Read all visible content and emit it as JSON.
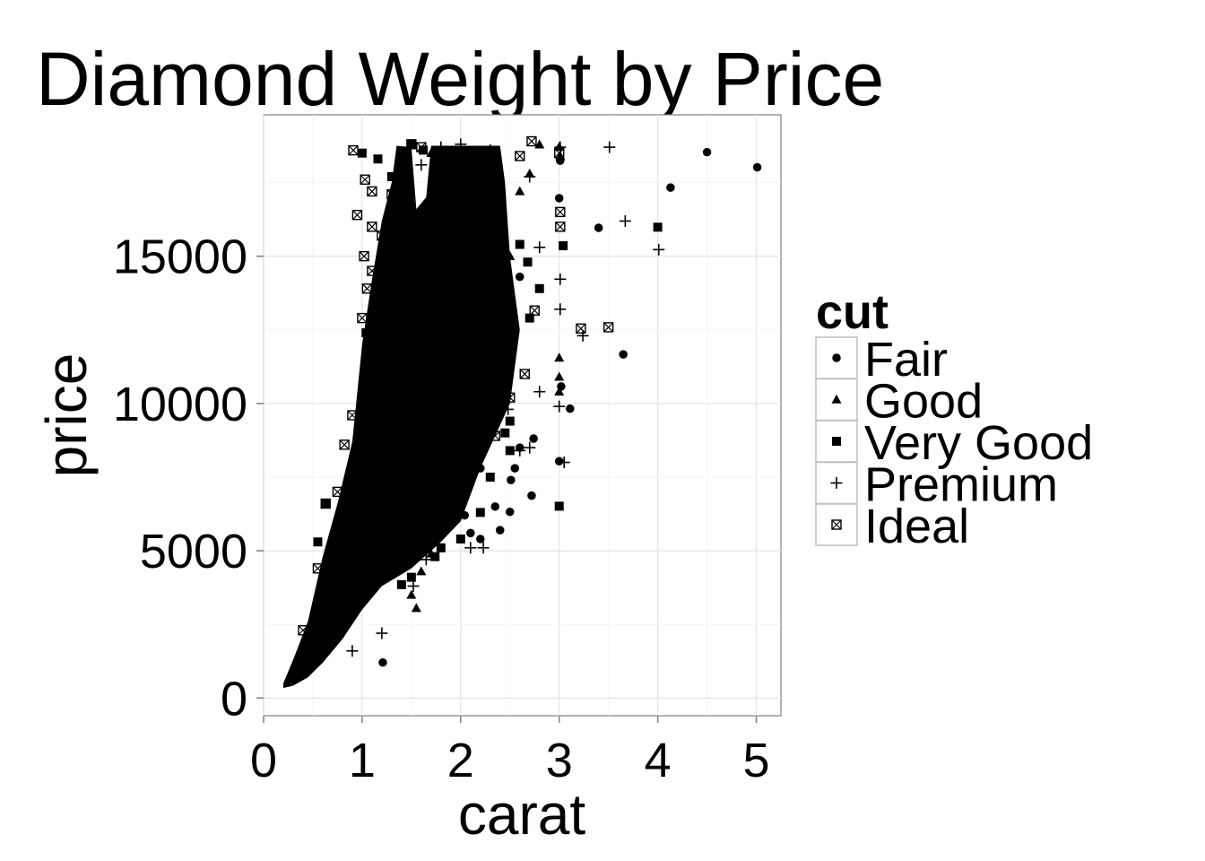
{
  "chart_data": {
    "type": "scatter",
    "title": "Diamond Weight by Price",
    "xlabel": "carat",
    "ylabel": "price",
    "xlim": [
      0,
      5.25
    ],
    "ylim": [
      -600,
      19800
    ],
    "xticks": [
      0,
      1,
      2,
      3,
      4,
      5
    ],
    "xtick_labels": [
      "0",
      "1",
      "2",
      "3",
      "4",
      "5"
    ],
    "yticks": [
      0,
      5000,
      10000,
      15000
    ],
    "ytick_labels": [
      "0",
      "5000",
      "10000",
      "15000"
    ],
    "grid": true,
    "legend": {
      "title": "cut",
      "position": "right",
      "entries": [
        {
          "label": "Fair",
          "shape": "circle"
        },
        {
          "label": "Good",
          "shape": "triangle"
        },
        {
          "label": "Very Good",
          "shape": "square"
        },
        {
          "label": "Premium",
          "shape": "plus"
        },
        {
          "label": "Ideal",
          "shape": "square-cross"
        }
      ]
    },
    "series": [
      {
        "name": "Fair",
        "shape": "circle",
        "points": [
          [
            5.01,
            18018
          ],
          [
            4.5,
            18531
          ],
          [
            4.13,
            17329
          ],
          [
            3.65,
            11668
          ],
          [
            3.4,
            15964
          ],
          [
            3.11,
            9823
          ],
          [
            3.01,
            18242
          ],
          [
            3.0,
            8040
          ],
          [
            3.02,
            10577
          ],
          [
            3.0,
            16970
          ],
          [
            2.72,
            6870
          ],
          [
            2.74,
            8807
          ],
          [
            2.5,
            6321
          ],
          [
            2.51,
            7400
          ],
          [
            2.4,
            5700
          ],
          [
            2.2,
            5400
          ],
          [
            2.04,
            6200
          ],
          [
            1.7,
            5200
          ],
          [
            1.5,
            4100
          ],
          [
            1.21,
            1206
          ],
          [
            2.0,
            12000
          ],
          [
            2.3,
            9000
          ],
          [
            2.6,
            8500
          ],
          [
            2.45,
            11200
          ],
          [
            2.55,
            7800
          ],
          [
            2.1,
            5600
          ],
          [
            2.35,
            6500
          ],
          [
            1.9,
            7100
          ],
          [
            2.2,
            7800
          ],
          [
            1.8,
            6300
          ],
          [
            1.0,
            3600
          ],
          [
            1.1,
            4200
          ],
          [
            0.9,
            3100
          ],
          [
            1.3,
            5400
          ],
          [
            0.7,
            2400
          ],
          [
            2.4,
            12900
          ],
          [
            2.5,
            13400
          ],
          [
            2.6,
            14300
          ],
          [
            2.2,
            15200
          ],
          [
            2.3,
            16600
          ]
        ]
      },
      {
        "name": "Good",
        "shape": "triangle",
        "points": [
          [
            3.0,
            18710
          ],
          [
            2.8,
            18788
          ],
          [
            3.01,
            18400
          ],
          [
            3.0,
            11550
          ],
          [
            3.0,
            10900
          ],
          [
            3.0,
            10400
          ],
          [
            2.7,
            17800
          ],
          [
            2.5,
            15000
          ],
          [
            2.4,
            16200
          ],
          [
            2.2,
            14500
          ],
          [
            1.5,
            3500
          ],
          [
            1.6,
            4300
          ],
          [
            1.7,
            4900
          ],
          [
            1.55,
            3050
          ],
          [
            2.0,
            10300
          ],
          [
            2.1,
            9800
          ],
          [
            1.8,
            12100
          ],
          [
            1.9,
            13300
          ],
          [
            2.0,
            15600
          ],
          [
            2.3,
            17900
          ],
          [
            2.6,
            17200
          ],
          [
            1.7,
            18500
          ],
          [
            1.6,
            16600
          ],
          [
            1.4,
            13900
          ],
          [
            1.3,
            11800
          ]
        ]
      },
      {
        "name": "Very Good",
        "shape": "square",
        "points": [
          [
            4.0,
            15984
          ],
          [
            3.04,
            15354
          ],
          [
            3.0,
            6512
          ],
          [
            2.8,
            13900
          ],
          [
            2.7,
            12900
          ],
          [
            2.5,
            9400
          ],
          [
            2.5,
            8400
          ],
          [
            2.3,
            7500
          ],
          [
            2.2,
            6300
          ],
          [
            2.0,
            5400
          ],
          [
            1.8,
            5100
          ],
          [
            1.74,
            4800
          ],
          [
            1.5,
            4100
          ],
          [
            1.4,
            3850
          ],
          [
            0.93,
            3200
          ],
          [
            0.63,
            6600
          ],
          [
            0.55,
            5300
          ],
          [
            1.04,
            12400
          ],
          [
            1.0,
            18500
          ],
          [
            1.16,
            18300
          ],
          [
            1.3,
            17700
          ],
          [
            1.5,
            18800
          ],
          [
            1.62,
            18600
          ],
          [
            2.0,
            18400
          ],
          [
            2.2,
            17600
          ],
          [
            2.4,
            16800
          ],
          [
            2.6,
            15400
          ],
          [
            2.68,
            14800
          ],
          [
            2.1,
            11500
          ],
          [
            2.3,
            10600
          ],
          [
            2.45,
            9000
          ],
          [
            2.2,
            8800
          ]
        ]
      },
      {
        "name": "Premium",
        "shape": "plus",
        "points": [
          [
            4.01,
            15223
          ],
          [
            3.67,
            16193
          ],
          [
            3.51,
            18701
          ],
          [
            3.01,
            18700
          ],
          [
            3.01,
            14220
          ],
          [
            3.01,
            13200
          ],
          [
            3.24,
            12300
          ],
          [
            3.0,
            9900
          ],
          [
            3.05,
            8000
          ],
          [
            2.8,
            15300
          ],
          [
            2.8,
            10400
          ],
          [
            2.7,
            8500
          ],
          [
            2.6,
            8400
          ],
          [
            2.48,
            9800
          ],
          [
            2.23,
            5100
          ],
          [
            2.2,
            8400
          ],
          [
            2.1,
            5100
          ],
          [
            2.0,
            6800
          ],
          [
            2.0,
            12100
          ],
          [
            1.7,
            5600
          ],
          [
            1.65,
            4700
          ],
          [
            1.52,
            3800
          ],
          [
            1.2,
            2200
          ],
          [
            0.9,
            1600
          ],
          [
            2.5,
            13100
          ],
          [
            2.7,
            17700
          ],
          [
            2.3,
            18600
          ],
          [
            2.0,
            18800
          ],
          [
            1.8,
            18700
          ],
          [
            1.6,
            18100
          ]
        ]
      },
      {
        "name": "Ideal",
        "shape": "square-cross",
        "points": [
          [
            3.5,
            12587
          ],
          [
            3.22,
            12545
          ],
          [
            3.01,
            16500
          ],
          [
            3.01,
            16000
          ],
          [
            3.0,
            18500
          ],
          [
            2.75,
            13156
          ],
          [
            2.72,
            18900
          ],
          [
            2.5,
            10200
          ],
          [
            2.65,
            11000
          ],
          [
            2.45,
            12400
          ],
          [
            2.35,
            8900
          ],
          [
            2.3,
            12200
          ],
          [
            2.2,
            11900
          ],
          [
            2.1,
            9600
          ],
          [
            2.02,
            7200
          ],
          [
            2.0,
            16500
          ],
          [
            1.75,
            14200
          ],
          [
            0.91,
            18594
          ],
          [
            1.03,
            17600
          ],
          [
            1.1,
            17200
          ],
          [
            0.95,
            16400
          ],
          [
            1.02,
            15000
          ],
          [
            1.1,
            16000
          ],
          [
            1.0,
            12900
          ],
          [
            0.9,
            9600
          ],
          [
            0.82,
            8600
          ],
          [
            0.75,
            7000
          ],
          [
            0.63,
            6600
          ],
          [
            0.55,
            4400
          ],
          [
            0.4,
            2300
          ],
          [
            1.1,
            14500
          ],
          [
            1.2,
            15700
          ],
          [
            1.3,
            17100
          ],
          [
            1.5,
            18800
          ],
          [
            1.6,
            18700
          ],
          [
            1.25,
            15100
          ],
          [
            1.15,
            13200
          ],
          [
            1.35,
            16400
          ],
          [
            1.05,
            13900
          ],
          [
            2.6,
            18400
          ]
        ]
      }
    ]
  }
}
